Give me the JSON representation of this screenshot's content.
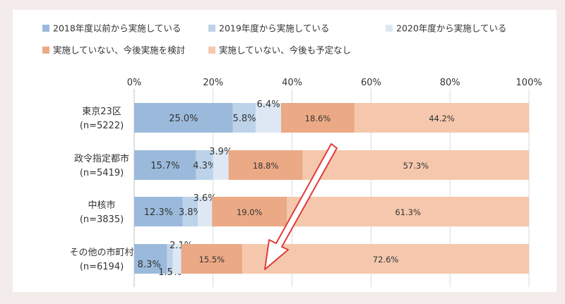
{
  "chart_data": {
    "type": "bar",
    "orientation": "horizontal",
    "stacked": true,
    "xlim": [
      0,
      100
    ],
    "x_ticks": [
      "0%",
      "20%",
      "40%",
      "60%",
      "80%",
      "100%"
    ],
    "grid": true,
    "legend_position": "top",
    "categories": [
      {
        "name": "東京23区",
        "n": "(n=5222)"
      },
      {
        "name": "政令指定都市",
        "n": "(n=5419)"
      },
      {
        "name": "中核市",
        "n": "(n=3835)"
      },
      {
        "name": "その他の市町村",
        "n": "(n=6194)"
      }
    ],
    "series": [
      {
        "name": "2018年度以前から実施している",
        "color": "#9bbadb",
        "values": [
          25.0,
          15.7,
          12.3,
          8.3
        ],
        "labels": [
          "25.0%",
          "15.7%",
          "12.3%",
          "8.3%"
        ]
      },
      {
        "name": "2019年度から実施している",
        "color": "#bdd3ea",
        "values": [
          5.8,
          4.3,
          3.8,
          1.5
        ],
        "labels": [
          "5.8%",
          "4.3%",
          "3.8%",
          "1.5%"
        ]
      },
      {
        "name": "2020年度から実施している",
        "color": "#dde8f4",
        "values": [
          6.4,
          3.9,
          3.6,
          2.1
        ],
        "labels": [
          "6.4%",
          "3.9%",
          "3.6%",
          "2.1%"
        ]
      },
      {
        "name": "実施していない、今後実施を検討",
        "color": "#eba985",
        "values": [
          18.6,
          18.8,
          19.0,
          15.5
        ],
        "labels": [
          "18.6%",
          "18.8%",
          "19.0%",
          "15.5%"
        ]
      },
      {
        "name": "実施していない、今後も予定なし",
        "color": "#f5c8ad",
        "values": [
          44.2,
          57.3,
          61.3,
          72.6
        ],
        "labels": [
          "44.2%",
          "57.3%",
          "61.3%",
          "72.6%"
        ]
      }
    ],
    "annotation": {
      "type": "arrow",
      "color": "#e03a3a"
    }
  }
}
